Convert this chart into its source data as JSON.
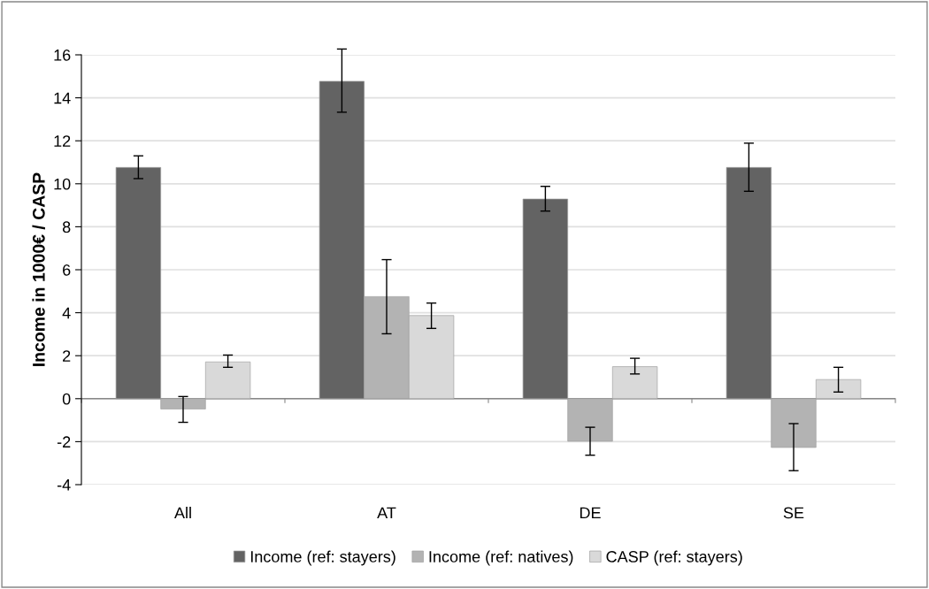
{
  "chart_data": {
    "type": "bar",
    "ylabel": "Income in 1000€ / CASP",
    "categories": [
      "All",
      "AT",
      "DE",
      "SE"
    ],
    "series": [
      {
        "name": "Income (ref: stayers)",
        "color": "#636363",
        "values": [
          10.76,
          14.77,
          9.29,
          10.76
        ],
        "errors": [
          [
            10.24,
            11.3
          ],
          [
            13.33,
            16.27
          ],
          [
            8.73,
            9.88
          ],
          [
            9.65,
            11.89
          ]
        ]
      },
      {
        "name": "Income (ref: natives)",
        "color": "#b3b3b3",
        "values": [
          -0.48,
          4.75,
          -1.98,
          -2.27
        ],
        "errors": [
          [
            -1.1,
            0.1
          ],
          [
            3.02,
            6.47
          ],
          [
            -2.63,
            -1.33
          ],
          [
            -3.35,
            -1.16
          ]
        ]
      },
      {
        "name": "CASP (ref: stayers)",
        "color": "#d9d9d9",
        "values": [
          1.71,
          3.87,
          1.49,
          0.89
        ],
        "errors": [
          [
            1.46,
            2.03
          ],
          [
            3.27,
            4.45
          ],
          [
            1.15,
            1.88
          ],
          [
            0.31,
            1.46
          ]
        ]
      }
    ],
    "ylim": [
      -4,
      16
    ],
    "yticks": [
      -4,
      -2,
      0,
      2,
      4,
      6,
      8,
      10,
      12,
      14,
      16
    ],
    "grid": "y",
    "legend": "bottom"
  }
}
